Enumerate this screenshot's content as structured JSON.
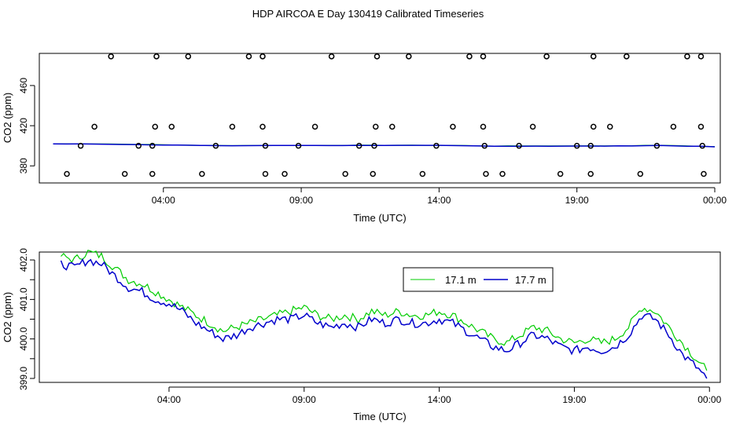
{
  "title": "HDP AIRCOA E  Day 130419  Calibrated Timeseries",
  "colors": {
    "series_green": "#00cc00",
    "series_blue": "#0000cc",
    "marker": "#000000",
    "axis": "#000000"
  },
  "chart_data": [
    {
      "type": "scatter",
      "xlabel": "Time (UTC)",
      "ylabel": "CO2 (ppm)",
      "x_unit": "hours (UTC) since 00:00 Day 130419",
      "xlim": [
        -0.5,
        24.2
      ],
      "ylim": [
        363,
        492
      ],
      "x_ticks": [
        4,
        9,
        14,
        19,
        24
      ],
      "x_tick_labels": [
        "04:00",
        "09:00",
        "14:00",
        "19:00",
        "00:00"
      ],
      "y_ticks": [
        380,
        420,
        460
      ],
      "y_tick_labels": [
        "380",
        "420",
        "460"
      ],
      "grid": false,
      "line_series": [
        {
          "color": "#00cc00",
          "x": [
            0,
            2,
            4,
            6,
            8,
            10,
            12,
            14,
            16,
            18,
            20,
            22,
            24
          ],
          "y": [
            402.0,
            401.8,
            401.0,
            400.2,
            400.4,
            400.5,
            400.6,
            400.5,
            399.8,
            399.9,
            399.9,
            400.5,
            399.2
          ]
        },
        {
          "color": "#0000cc",
          "x": [
            0,
            2,
            4,
            6,
            8,
            10,
            12,
            14,
            16,
            18,
            20,
            22,
            24
          ],
          "y": [
            401.9,
            401.6,
            400.9,
            400.0,
            400.3,
            400.3,
            400.4,
            400.3,
            399.6,
            399.7,
            399.7,
            400.3,
            399.0
          ]
        }
      ],
      "points": [
        {
          "x": 0.5,
          "y": 372
        },
        {
          "x": 1.0,
          "y": 400
        },
        {
          "x": 1.5,
          "y": 419
        },
        {
          "x": 2.1,
          "y": 489
        },
        {
          "x": 2.6,
          "y": 372
        },
        {
          "x": 3.1,
          "y": 400
        },
        {
          "x": 3.6,
          "y": 400
        },
        {
          "x": 3.6,
          "y": 372
        },
        {
          "x": 3.7,
          "y": 419
        },
        {
          "x": 3.75,
          "y": 489
        },
        {
          "x": 4.3,
          "y": 419
        },
        {
          "x": 4.9,
          "y": 489
        },
        {
          "x": 5.4,
          "y": 372
        },
        {
          "x": 5.9,
          "y": 400
        },
        {
          "x": 6.5,
          "y": 419
        },
        {
          "x": 7.1,
          "y": 489
        },
        {
          "x": 7.6,
          "y": 489
        },
        {
          "x": 7.6,
          "y": 419
        },
        {
          "x": 7.7,
          "y": 400
        },
        {
          "x": 7.7,
          "y": 372
        },
        {
          "x": 8.4,
          "y": 372
        },
        {
          "x": 8.9,
          "y": 400
        },
        {
          "x": 9.5,
          "y": 419
        },
        {
          "x": 10.1,
          "y": 489
        },
        {
          "x": 10.6,
          "y": 372
        },
        {
          "x": 11.1,
          "y": 400
        },
        {
          "x": 11.6,
          "y": 372
        },
        {
          "x": 11.65,
          "y": 400
        },
        {
          "x": 11.7,
          "y": 419
        },
        {
          "x": 11.75,
          "y": 489
        },
        {
          "x": 12.3,
          "y": 419
        },
        {
          "x": 12.9,
          "y": 489
        },
        {
          "x": 13.4,
          "y": 372
        },
        {
          "x": 13.9,
          "y": 400
        },
        {
          "x": 14.5,
          "y": 419
        },
        {
          "x": 15.1,
          "y": 489
        },
        {
          "x": 15.6,
          "y": 489
        },
        {
          "x": 15.6,
          "y": 419
        },
        {
          "x": 15.65,
          "y": 400
        },
        {
          "x": 15.7,
          "y": 372
        },
        {
          "x": 16.3,
          "y": 372
        },
        {
          "x": 16.9,
          "y": 400
        },
        {
          "x": 17.4,
          "y": 419
        },
        {
          "x": 17.9,
          "y": 489
        },
        {
          "x": 18.4,
          "y": 372
        },
        {
          "x": 19.0,
          "y": 400
        },
        {
          "x": 19.5,
          "y": 372
        },
        {
          "x": 19.5,
          "y": 400
        },
        {
          "x": 19.6,
          "y": 419
        },
        {
          "x": 19.6,
          "y": 489
        },
        {
          "x": 20.2,
          "y": 419
        },
        {
          "x": 20.8,
          "y": 489
        },
        {
          "x": 21.3,
          "y": 372
        },
        {
          "x": 21.9,
          "y": 400
        },
        {
          "x": 22.5,
          "y": 419
        },
        {
          "x": 23.0,
          "y": 489
        },
        {
          "x": 23.5,
          "y": 489
        },
        {
          "x": 23.5,
          "y": 419
        },
        {
          "x": 23.55,
          "y": 400
        },
        {
          "x": 23.6,
          "y": 372
        }
      ]
    },
    {
      "type": "line",
      "xlabel": "Time (UTC)",
      "ylabel": "CO2 (ppm)",
      "x_unit": "hours (UTC) since 00:00 Day 130419",
      "xlim": [
        -0.8,
        24.4
      ],
      "ylim": [
        398.9,
        402.2
      ],
      "x_ticks": [
        4,
        9,
        14,
        19,
        24
      ],
      "x_tick_labels": [
        "04:00",
        "09:00",
        "14:00",
        "19:00",
        "00:00"
      ],
      "y_ticks": [
        399.0,
        400.0,
        401.0,
        402.0
      ],
      "y_tick_labels": [
        "399.0",
        "400.0",
        "401.0",
        "402.0"
      ],
      "minor_y_ticks": [
        399.5,
        400.5,
        401.5
      ],
      "grid": false,
      "legend_position": "top-center",
      "series": [
        {
          "name": "17.1 m",
          "color": "#00cc00",
          "x": [
            0,
            0.5,
            1.0,
            1.5,
            2.0,
            2.5,
            3.0,
            3.5,
            4.0,
            4.5,
            5.0,
            5.5,
            6.0,
            6.5,
            7.0,
            7.5,
            8.0,
            8.5,
            9.0,
            9.5,
            10.0,
            10.5,
            11.0,
            11.5,
            12.0,
            12.5,
            13.0,
            13.5,
            14.0,
            14.5,
            15.0,
            15.5,
            16.0,
            16.5,
            17.0,
            17.5,
            18.0,
            18.5,
            19.0,
            19.5,
            20.0,
            20.5,
            21.0,
            21.5,
            22.0,
            22.5,
            23.0,
            23.5,
            23.9
          ],
          "y": [
            402.1,
            402.0,
            402.2,
            402.1,
            401.8,
            401.5,
            401.4,
            401.2,
            401.0,
            400.8,
            400.6,
            400.4,
            400.2,
            400.3,
            400.4,
            400.5,
            400.6,
            400.7,
            400.8,
            400.6,
            400.5,
            400.6,
            400.5,
            400.7,
            400.6,
            400.7,
            400.6,
            400.6,
            400.7,
            400.6,
            400.4,
            400.2,
            400.0,
            399.9,
            400.1,
            400.3,
            400.2,
            400.0,
            399.9,
            400.0,
            399.9,
            400.0,
            400.3,
            400.8,
            400.7,
            400.3,
            399.9,
            399.5,
            399.2
          ]
        },
        {
          "name": "17.7 m",
          "color": "#0000cc",
          "x": [
            0,
            0.5,
            1.0,
            1.5,
            2.0,
            2.5,
            3.0,
            3.5,
            4.0,
            4.5,
            5.0,
            5.5,
            6.0,
            6.5,
            7.0,
            7.5,
            8.0,
            8.5,
            9.0,
            9.5,
            10.0,
            10.5,
            11.0,
            11.5,
            12.0,
            12.5,
            13.0,
            13.5,
            14.0,
            14.5,
            15.0,
            15.5,
            16.0,
            16.5,
            17.0,
            17.5,
            18.0,
            18.5,
            19.0,
            19.5,
            20.0,
            20.5,
            21.0,
            21.5,
            22.0,
            22.5,
            23.0,
            23.5,
            23.9
          ],
          "y": [
            401.9,
            401.8,
            402.0,
            401.9,
            401.6,
            401.3,
            401.2,
            401.0,
            400.9,
            400.7,
            400.4,
            400.2,
            400.0,
            400.1,
            400.3,
            400.4,
            400.5,
            400.5,
            400.6,
            400.4,
            400.3,
            400.4,
            400.3,
            400.5,
            400.4,
            400.5,
            400.4,
            400.4,
            400.5,
            400.4,
            400.2,
            400.0,
            399.8,
            399.7,
            399.9,
            400.1,
            400.0,
            399.8,
            399.7,
            399.8,
            399.7,
            399.8,
            400.1,
            400.6,
            400.5,
            400.1,
            399.6,
            399.3,
            399.0
          ]
        }
      ]
    }
  ]
}
